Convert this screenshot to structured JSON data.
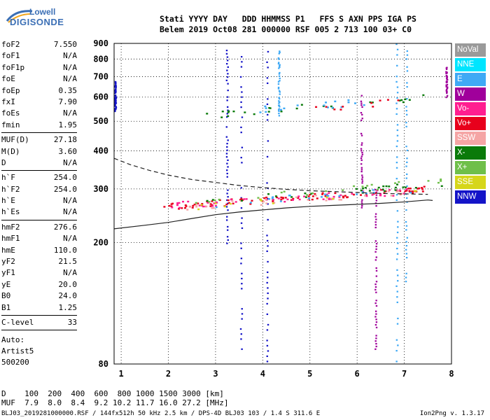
{
  "logo": {
    "line1": "Lowell",
    "line2": "DIGISONDE"
  },
  "header": {
    "row1": "Stati YYYY DAY   DDD HHMMSS P1   FFS S AXN PPS IGA PS",
    "row2": "Belem 2019 Oct08 281 000000 RSF 005 2 713 100 03+ C0"
  },
  "params": [
    {
      "name": "foF2",
      "value": "7.550"
    },
    {
      "name": "foF1",
      "value": "N/A"
    },
    {
      "name": "foF1p",
      "value": "N/A"
    },
    {
      "name": "foE",
      "value": "N/A"
    },
    {
      "name": "foEp",
      "value": "0.35"
    },
    {
      "name": "fxI",
      "value": "7.90"
    },
    {
      "name": "foEs",
      "value": "N/A"
    },
    {
      "name": "fmin",
      "value": "1.95"
    },
    {
      "sep": true
    },
    {
      "name": "MUF(D)",
      "value": "27.18"
    },
    {
      "name": "M(D)",
      "value": "3.60"
    },
    {
      "name": "D",
      "value": "N/A"
    },
    {
      "sep": true
    },
    {
      "name": "h`F",
      "value": "254.0"
    },
    {
      "name": "h`F2",
      "value": "254.0"
    },
    {
      "name": "h`E",
      "value": "N/A"
    },
    {
      "name": "h`Es",
      "value": "N/A"
    },
    {
      "sep": true
    },
    {
      "name": "hmF2",
      "value": "276.6"
    },
    {
      "name": "hmF1",
      "value": "N/A"
    },
    {
      "name": "hmE",
      "value": "110.0"
    },
    {
      "name": "yF2",
      "value": "21.5"
    },
    {
      "name": "yF1",
      "value": "N/A"
    },
    {
      "name": "yE",
      "value": "20.0"
    },
    {
      "name": "B0",
      "value": "24.0"
    },
    {
      "name": "B1",
      "value": "1.25"
    },
    {
      "sep": true
    },
    {
      "name": "C-level",
      "value": "33"
    },
    {
      "sep": true
    }
  ],
  "auto": [
    "Auto:",
    "Artist5",
    "500200"
  ],
  "legend": [
    {
      "label": "NoVal",
      "color": "#9a9a9a"
    },
    {
      "label": "NNE",
      "color": "#00e5ff"
    },
    {
      "label": "E",
      "color": "#3fa9f5"
    },
    {
      "label": "W",
      "color": "#a0009b"
    },
    {
      "label": "Vo-",
      "color": "#ff1e90"
    },
    {
      "label": "Vo+",
      "color": "#e8001c"
    },
    {
      "label": "SSW",
      "color": "#f5a5a5"
    },
    {
      "label": "X-",
      "color": "#0a7a0a"
    },
    {
      "label": "X+",
      "color": "#6fbf4a"
    },
    {
      "label": "SSE",
      "color": "#d6d61a"
    },
    {
      "label": "NNW",
      "color": "#1414c8"
    }
  ],
  "muf_table": {
    "row_d": "D    100  200  400  600  800 1000 1500 3000 [km]",
    "row_muf": "MUF  7.9  8.0  8.4  9.2 10.2 11.7 16.0 27.2 [MHz]"
  },
  "footer": "BLJ03_2019281000000.RSF / 144fx512h 50 kHz 2.5 km / DPS-4D BLJ03 103 / 1.4 S 311.6 E",
  "version": "Ion2Png v. 1.3.17",
  "chart_data": {
    "type": "scatter",
    "title": "",
    "xlabel": "",
    "ylabel": "",
    "xlim": [
      0.85,
      8.0
    ],
    "ylim": [
      80,
      900
    ],
    "yscale": "log",
    "x_ticks": [
      1,
      2,
      3,
      4,
      5,
      6,
      7,
      8
    ],
    "y_ticks": [
      80,
      200,
      300,
      400,
      500,
      600,
      700,
      800,
      900
    ],
    "grid": true,
    "legend_position": "right",
    "lines": [
      {
        "style": "dashed",
        "x": [
          0.85,
          1.2,
          1.6,
          2.0,
          2.5,
          3.0,
          3.5,
          4.0,
          4.5,
          5.0,
          5.5,
          6.0,
          6.5,
          7.0,
          7.5
        ],
        "y": [
          378,
          360,
          345,
          333,
          322,
          315,
          308,
          303,
          299,
          296,
          294,
          292,
          290,
          289,
          288
        ]
      },
      {
        "style": "solid",
        "x": [
          0.85,
          1.5,
          2.0,
          2.5,
          3.0,
          3.5,
          4.0,
          4.5,
          5.0,
          5.5,
          6.0,
          6.5,
          7.0,
          7.5,
          7.6
        ],
        "y": [
          222,
          228,
          233,
          240,
          247,
          252,
          256,
          260,
          263,
          265,
          267,
          269,
          272,
          276,
          275
        ]
      }
    ],
    "traces": [
      {
        "series": "Vo+",
        "x0": 1.9,
        "x1": 7.6,
        "y0": 262,
        "y1": 300,
        "n": 95
      },
      {
        "series": "Vo-",
        "x0": 2.0,
        "x1": 7.4,
        "y0": 265,
        "y1": 296,
        "n": 55
      },
      {
        "series": "SSW",
        "x0": 2.0,
        "x1": 7.0,
        "y0": 258,
        "y1": 292,
        "n": 30
      },
      {
        "series": "X-",
        "x0": 2.2,
        "x1": 7.8,
        "y0": 268,
        "y1": 312,
        "n": 28
      },
      {
        "series": "X+",
        "x0": 2.5,
        "x1": 7.8,
        "y0": 272,
        "y1": 318,
        "n": 22
      },
      {
        "series": "E",
        "x0": 3.0,
        "x1": 7.2,
        "y0": 268,
        "y1": 300,
        "n": 20
      },
      {
        "series": "SSE",
        "x0": 1.7,
        "x1": 7.5,
        "y0": 255,
        "y1": 300,
        "n": 12
      },
      {
        "series": "X-",
        "x0": 2.6,
        "x1": 7.5,
        "y0": 520,
        "y1": 600,
        "n": 26
      },
      {
        "series": "E",
        "x0": 3.6,
        "x1": 6.3,
        "y0": 540,
        "y1": 580,
        "n": 18
      },
      {
        "series": "Vo+",
        "x0": 5.0,
        "x1": 7.0,
        "y0": 550,
        "y1": 580,
        "n": 10
      }
    ],
    "streaks": [
      {
        "series": "NNW",
        "x": 3.25,
        "y0": 200,
        "y1": 880
      },
      {
        "series": "NNW",
        "x": 3.55,
        "y0": 90,
        "y1": 850
      },
      {
        "series": "NNW",
        "x": 4.1,
        "y0": 82,
        "y1": 850
      },
      {
        "series": "W",
        "x": 6.1,
        "y0": 262,
        "y1": 610
      },
      {
        "series": "E",
        "x": 6.85,
        "y0": 82,
        "y1": 900
      },
      {
        "series": "E",
        "x": 7.05,
        "y0": 150,
        "y1": 880
      },
      {
        "series": "W",
        "x": 6.4,
        "y0": 90,
        "y1": 300
      },
      {
        "series": "E",
        "x": 4.35,
        "y0": 520,
        "y1": 860
      },
      {
        "series": "W",
        "x": 7.9,
        "y0": 600,
        "y1": 760
      },
      {
        "series": "NNW",
        "x": 0.88,
        "y0": 540,
        "y1": 680
      }
    ]
  }
}
